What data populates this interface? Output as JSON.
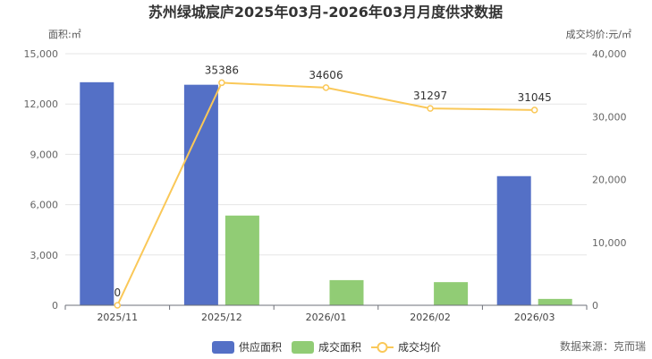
{
  "chart_data": {
    "type": "bar+line",
    "title": "苏州绿城宸庐2025年03月-2026年03月月度供求数据",
    "categories": [
      "2025/11",
      "2025/12",
      "2026/01",
      "2026/02",
      "2026/03"
    ],
    "y_left": {
      "label": "面积:㎡",
      "min": 0,
      "max": 15000,
      "ticks": [
        0,
        3000,
        6000,
        9000,
        12000,
        15000
      ],
      "tick_labels": [
        "0",
        "3,000",
        "6,000",
        "9,000",
        "12,000",
        "15,000"
      ]
    },
    "y_right": {
      "label": "成交均价:元/㎡",
      "min": 0,
      "max": 40000,
      "ticks": [
        0,
        10000,
        20000,
        30000,
        40000
      ],
      "tick_labels": [
        "0",
        "10,000",
        "20,000",
        "30,000",
        "40,000"
      ]
    },
    "series": [
      {
        "name": "供应面积",
        "type": "bar",
        "axis": "left",
        "color": "#5470c6",
        "values": [
          13300,
          13150,
          0,
          0,
          7700
        ]
      },
      {
        "name": "成交面积",
        "type": "bar",
        "axis": "left",
        "color": "#91cc75",
        "values": [
          0,
          5350,
          1500,
          1380,
          380
        ]
      },
      {
        "name": "成交均价",
        "type": "line",
        "axis": "right",
        "color": "#fac858",
        "values": [
          0,
          35386,
          34606,
          31297,
          31045
        ],
        "labels": [
          "0",
          "35386",
          "34606",
          "31297",
          "31045"
        ]
      }
    ],
    "legend": {
      "position": "bottom-center"
    },
    "grid": "horizontal",
    "source": "数据来源：克而瑞"
  }
}
